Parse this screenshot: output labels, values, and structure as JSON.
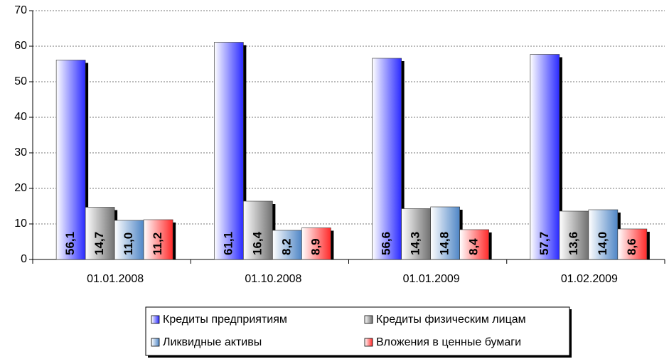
{
  "chart_data": {
    "type": "bar",
    "categories": [
      "01.01.2008",
      "01.10.2008",
      "01.01.2009",
      "01.02.2009"
    ],
    "series": [
      {
        "name": "Кредиты предприятиям",
        "color": "#2a2aff",
        "values": [
          56.1,
          61.1,
          56.6,
          57.7
        ],
        "value_labels": [
          "56,1",
          "61,1",
          "56,6",
          "57,7"
        ]
      },
      {
        "name": "Кредиты физическим лицам",
        "color": "#707070",
        "values": [
          14.7,
          16.4,
          14.3,
          13.6
        ],
        "value_labels": [
          "14,7",
          "16,4",
          "14,3",
          "13,6"
        ]
      },
      {
        "name": "Ликвидные активы",
        "color": "#4f86c6",
        "values": [
          11.0,
          8.2,
          14.8,
          14.0
        ],
        "value_labels": [
          "11,0",
          "8,2",
          "14,8",
          "14,0"
        ]
      },
      {
        "name": "Вложения в ценные бумаги",
        "color": "#ff2a2a",
        "values": [
          11.2,
          8.9,
          8.4,
          8.6
        ],
        "value_labels": [
          "11,2",
          "8,9",
          "8,4",
          "8,6"
        ]
      }
    ],
    "ylim": [
      0,
      70
    ],
    "yticks": [
      0,
      10,
      20,
      30,
      40,
      50,
      60,
      70
    ],
    "grid": true,
    "legend": "bottom"
  }
}
